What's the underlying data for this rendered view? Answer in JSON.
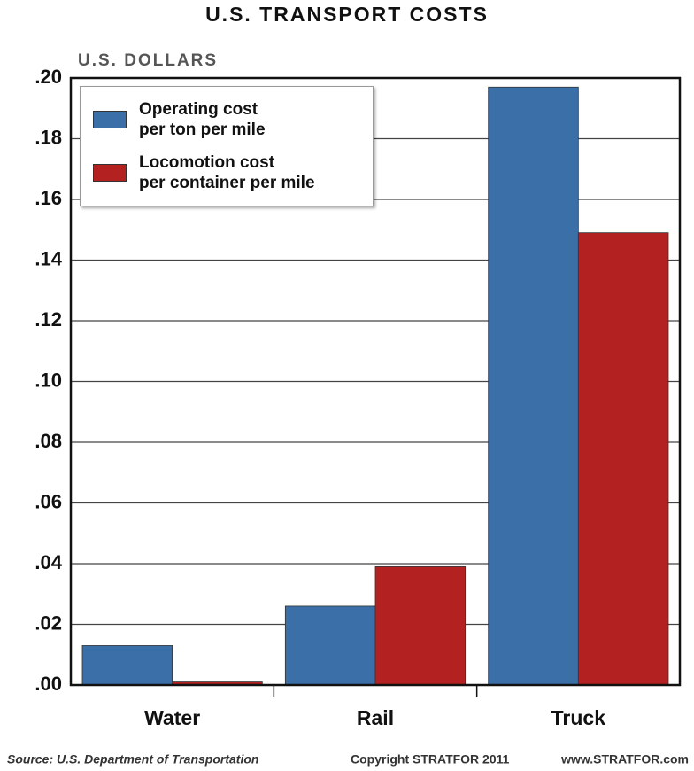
{
  "chart_data": {
    "type": "bar",
    "title": "U.S. TRANSPORT COSTS",
    "y_label": "U.S. DOLLARS",
    "categories": [
      "Water",
      "Rail",
      "Truck"
    ],
    "series": [
      {
        "name": "Operating cost\nper ton per mile",
        "color": "#3b6fa8",
        "values": [
          0.013,
          0.026,
          0.197
        ]
      },
      {
        "name": "Locomotion cost\nper container per mile",
        "color": "#b32121",
        "values": [
          0.001,
          0.039,
          0.149
        ]
      }
    ],
    "ylim": [
      0,
      0.2
    ],
    "yticks": [
      {
        "value": 0,
        "label": ".00"
      },
      {
        "value": 0.02,
        "label": ".02"
      },
      {
        "value": 0.04,
        "label": ".04"
      },
      {
        "value": 0.06,
        "label": ".06"
      },
      {
        "value": 0.08,
        "label": ".08"
      },
      {
        "value": 0.1,
        "label": ".10"
      },
      {
        "value": 0.12,
        "label": ".12"
      },
      {
        "value": 0.14,
        "label": ".14"
      },
      {
        "value": 0.16,
        "label": ".16"
      },
      {
        "value": 0.18,
        "label": ".18"
      },
      {
        "value": 0.2,
        "label": ".20"
      }
    ],
    "grid": true,
    "legend": "top-left",
    "source": "Source: U.S. Department of Transportation",
    "copyright": "Copyright STRATFOR 2011",
    "website": "www.STRATFOR.com"
  }
}
